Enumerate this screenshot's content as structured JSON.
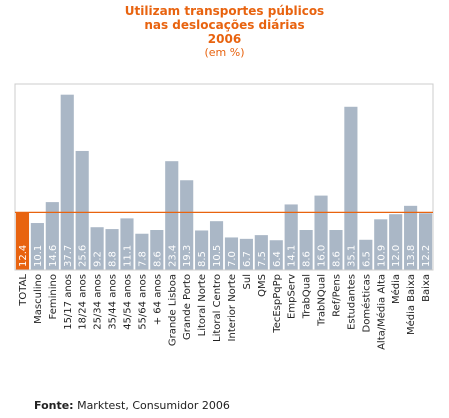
{
  "chart_data": {
    "type": "bar",
    "title": [
      "Utilizam transportes públicos",
      "nas deslocações diárias",
      "2006"
    ],
    "subtitle": "(em %)",
    "categories": [
      "TOTAL",
      "Masculino",
      "Feminino",
      "15/17 anos",
      "18/24 anos",
      "25/34 anos",
      "35/44 anos",
      "45/54 anos",
      "55/64 anos",
      "+ 64 anos",
      "Grande Lisboa",
      "Grande Porto",
      "Litoral Norte",
      "Litoral Centro",
      "Interior Norte",
      "Sul",
      "QMS",
      "TecEspPqPp",
      "EmpServ",
      "TrabQual",
      "TrabNQual",
      "Ref/Pens",
      "Estudantes",
      "Domésticas",
      "Alta/Média Alta",
      "Média",
      "Média Baixa",
      "Baixa"
    ],
    "values": [
      12.4,
      10.1,
      14.6,
      37.7,
      25.6,
      9.2,
      8.8,
      11.1,
      7.8,
      8.6,
      23.4,
      19.3,
      8.5,
      10.5,
      7.0,
      6.7,
      7.5,
      6.4,
      14.1,
      8.6,
      16.0,
      8.6,
      35.1,
      6.5,
      10.9,
      12.0,
      13.8,
      12.2
    ],
    "value_labels": [
      "12.4",
      "10.1",
      "14.6",
      "37.7",
      "25.6",
      "9.2",
      "8.8",
      "11.1",
      "7.8",
      "8.6",
      "23.4",
      "19.3",
      "8.5",
      "10.5",
      "7.0",
      "6.7",
      "7.5",
      "6.4",
      "14.1",
      "8.6",
      "16.0",
      "8.6",
      "35.1",
      "6.5",
      "10.9",
      "12.0",
      "13.8",
      "12.2"
    ],
    "highlight_index": 0,
    "reference_value": 12.4,
    "ylim": [
      0,
      40
    ],
    "grid": false,
    "legend": "none",
    "colors": {
      "bar": "#aab7c6",
      "highlight": "#e8630f",
      "reference_line": "#e8630f",
      "label_on_bar": "#ffffff",
      "category_text": "#222222",
      "frame": "#cccccc"
    }
  },
  "source": {
    "label": "Fonte:",
    "text": "Marktest, Consumidor 2006"
  }
}
